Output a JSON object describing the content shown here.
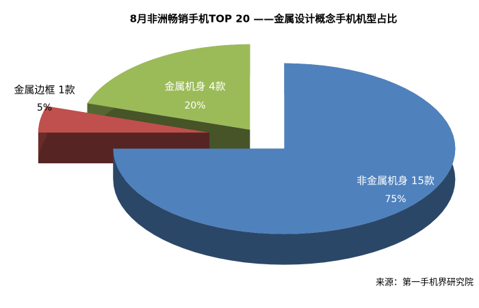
{
  "chart_data": {
    "type": "pie3d",
    "title": "8月非洲畅销手机TOP 20 ——金属设计概念手机机型占比",
    "categories": [
      "非金属机身 15款",
      "金属边框 1款",
      "金属机身 4款"
    ],
    "values": [
      75,
      5,
      20
    ],
    "value_labels": [
      "75%",
      "5%",
      "20%"
    ],
    "colors": [
      "#4f81bd",
      "#c0504d",
      "#9bbb59"
    ],
    "source": "来源：第一手机界研究院"
  }
}
